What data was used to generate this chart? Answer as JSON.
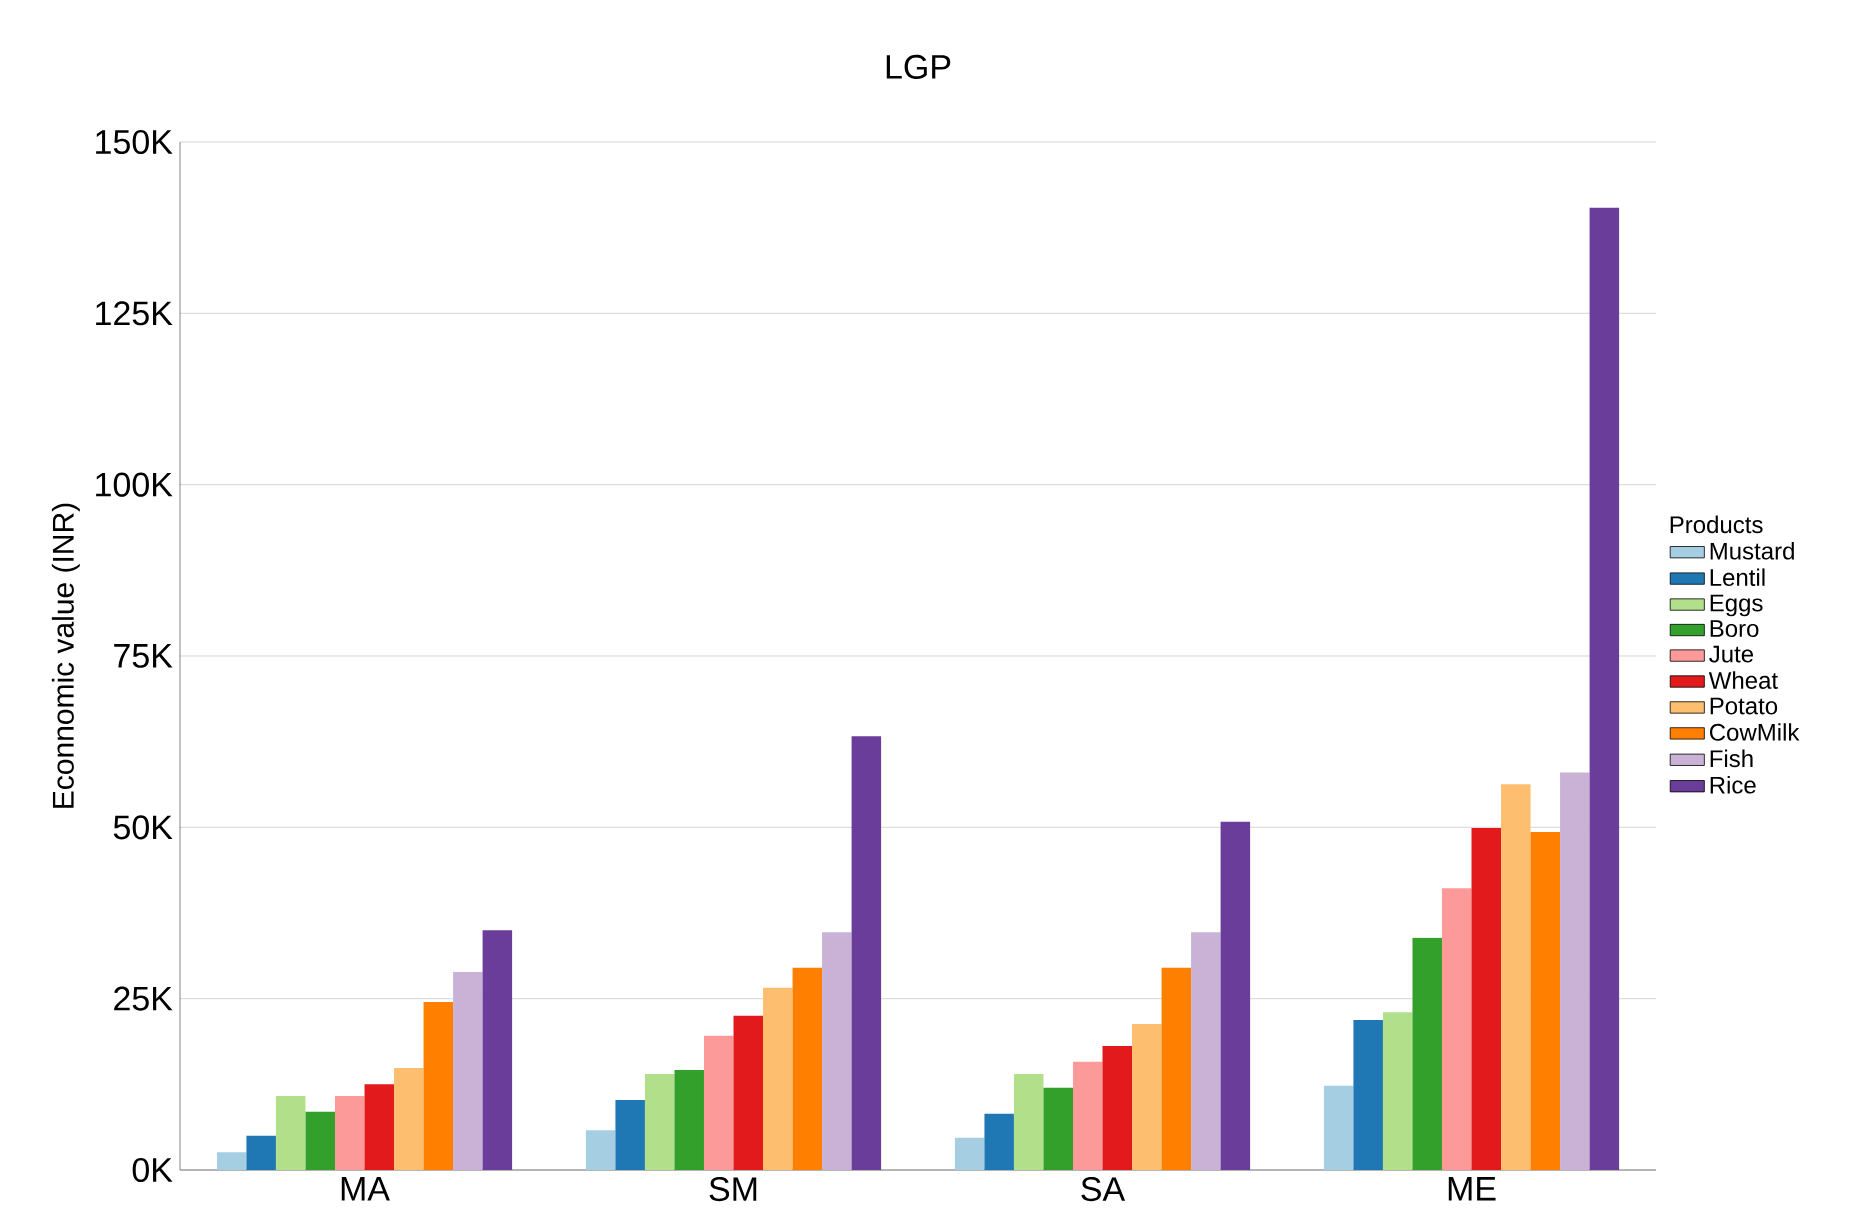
{
  "chart_data": {
    "type": "bar",
    "title": "LGP",
    "ylabel": "Econnomic value (INR)",
    "legend_title": "Products",
    "categories": [
      "MA",
      "SM",
      "SA",
      "ME"
    ],
    "series": [
      {
        "name": "Mustard",
        "color": "#a6cee3",
        "values": [
          2.6,
          5.8,
          4.7,
          12.3
        ]
      },
      {
        "name": "Lentil",
        "color": "#1f78b4",
        "values": [
          5,
          10.2,
          8.2,
          21.9
        ]
      },
      {
        "name": "Eggs",
        "color": "#b2df8a",
        "values": [
          10.8,
          14,
          14,
          23
        ]
      },
      {
        "name": "Boro",
        "color": "#33a02c",
        "values": [
          8.5,
          14.6,
          12,
          33.9
        ]
      },
      {
        "name": "Jute",
        "color": "#fb9a99",
        "values": [
          10.8,
          19.6,
          15.8,
          41.1
        ]
      },
      {
        "name": "Wheat",
        "color": "#e31a1c",
        "values": [
          12.5,
          22.5,
          18.1,
          49.9
        ]
      },
      {
        "name": "Potato",
        "color": "#fdbf6f",
        "values": [
          14.9,
          26.6,
          21.3,
          56.3
        ]
      },
      {
        "name": "CowMilk",
        "color": "#ff7f00",
        "values": [
          24.5,
          29.5,
          29.5,
          49.3
        ]
      },
      {
        "name": "Fish",
        "color": "#cab2d6",
        "values": [
          28.9,
          34.7,
          34.7,
          58
        ]
      },
      {
        "name": "Rice",
        "color": "#6a3d9a",
        "values": [
          35,
          63.3,
          50.8,
          140.4
        ]
      }
    ],
    "ylim": [
      0,
      150
    ],
    "yticks": [
      {
        "value": 0,
        "label": "0K"
      },
      {
        "value": 25,
        "label": "25K"
      },
      {
        "value": 50,
        "label": "50K"
      },
      {
        "value": 75,
        "label": "75K"
      },
      {
        "value": 100,
        "label": "100K"
      },
      {
        "value": 125,
        "label": "125K"
      },
      {
        "value": 150,
        "label": "150K"
      }
    ],
    "grid": "y",
    "legend": "right"
  }
}
